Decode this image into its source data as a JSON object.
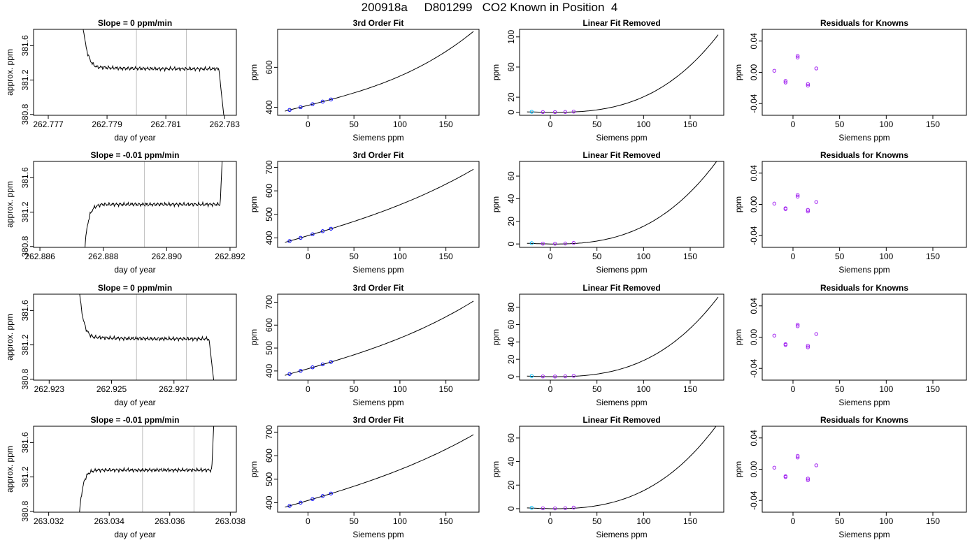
{
  "figure_title": "200918a     D801299   CO2 Known in Position  4",
  "colors": {
    "line": "#000000",
    "grid": "#bebebe",
    "point_blue": "#0000ff",
    "point_purple": "#a020f0",
    "point_cyan": "#00bfff",
    "marker_red": "#ff0000"
  },
  "chart_data": [
    {
      "id": "r1-trace",
      "type": "line",
      "title": "Slope =  0  ppm/min",
      "xlabel": "day of year",
      "ylabel": "approx. ppm",
      "xlim": [
        262.7765,
        262.7834
      ],
      "ylim": [
        380.79,
        381.79
      ],
      "xticks": [
        262.777,
        262.779,
        262.781,
        262.783
      ],
      "yticks": [
        380.8,
        381.2,
        381.6
      ],
      "vlines": [
        262.78,
        262.7817
      ],
      "x0": 262.7781,
      "x1": 262.783,
      "hi": 382.2,
      "lo": 380.7,
      "plateau": 381.33,
      "direction": "down"
    },
    {
      "id": "r1-fit",
      "type": "line",
      "title": "3rd Order Fit",
      "xlabel": "Siemens ppm",
      "ylabel": "ppm",
      "xlim": [
        -33,
        186
      ],
      "ylim": [
        360,
        790
      ],
      "xticks": [
        0,
        50,
        100,
        150
      ],
      "yticks": [
        400,
        600
      ],
      "curve": {
        "x": [
          -25,
          180
        ],
        "c0": 409.6,
        "c1": 1.15,
        "c2": 0.0008,
        "c3": 2.35e-05
      },
      "points": {
        "x": [
          -20,
          -8,
          5,
          16,
          25
        ],
        "y": [
          386.7,
          400.4,
          415.7,
          428.7,
          439.3
        ],
        "color": "blue"
      }
    },
    {
      "id": "r1-lin",
      "type": "line",
      "title": "Linear Fit Removed",
      "xlabel": "Siemens ppm",
      "ylabel": "ppm",
      "xlim": [
        -33,
        186
      ],
      "ylim": [
        -4,
        110
      ],
      "xticks": [
        0,
        50,
        100,
        150
      ],
      "yticks": [
        0,
        20,
        60,
        100
      ],
      "curve": {
        "x": [
          -25,
          180
        ],
        "c0": 0,
        "c1": -0.01,
        "c2": 0.0008,
        "c3": 1.35e-05
      },
      "points": {
        "x": [
          -20,
          -8,
          5,
          16,
          25
        ],
        "y": [
          0.7,
          0.3,
          0.2,
          0.4,
          0.9
        ],
        "color": "purple",
        "first_color": "cyan"
      }
    },
    {
      "id": "r1-res",
      "type": "scatter",
      "title": "Residuals for Knowns",
      "xlabel": "Siemens ppm",
      "ylabel": "ppm",
      "xlim": [
        -33,
        186
      ],
      "ylim": [
        -0.055,
        0.055
      ],
      "xticks": [
        0,
        50,
        100,
        150
      ],
      "yticks": [
        -0.04,
        0.0,
        0.04
      ],
      "ytick_labels": [
        "-0.04",
        "0.00",
        "0.04"
      ],
      "points": {
        "x": [
          -20,
          -8,
          -8,
          5,
          5,
          16,
          16,
          25
        ],
        "y": [
          0.002,
          -0.011,
          -0.013,
          0.021,
          0.019,
          -0.015,
          -0.017,
          0.005
        ],
        "color": "purple"
      }
    },
    {
      "id": "r2-trace",
      "type": "line",
      "title": "Slope =  -0.01  ppm/min",
      "xlabel": "day of year",
      "ylabel": "approx. ppm",
      "xlim": [
        262.8858,
        262.8922
      ],
      "ylim": [
        380.79,
        381.79
      ],
      "xticks": [
        262.886,
        262.888,
        262.89,
        262.892
      ],
      "yticks": [
        380.8,
        381.2,
        381.6
      ],
      "vlines": [
        262.8893,
        262.891
      ],
      "x0": 262.8874,
      "x1": 262.8918,
      "hi": 382.2,
      "lo": 380.7,
      "plateau": 381.29,
      "direction": "up"
    },
    {
      "id": "r2-fit",
      "type": "line",
      "title": "3rd Order Fit",
      "xlabel": "Siemens ppm",
      "ylabel": "ppm",
      "xlim": [
        -33,
        186
      ],
      "ylim": [
        360,
        725
      ],
      "xticks": [
        0,
        50,
        100,
        150
      ],
      "yticks": [
        400,
        500,
        600,
        700
      ],
      "curve": {
        "x": [
          -25,
          180
        ],
        "c0": 409.6,
        "c1": 1.15,
        "c2": 0.0008,
        "c3": 8.4e-06
      },
      "points": {
        "x": [
          -20,
          -8,
          5,
          16,
          25
        ],
        "y": [
          386.7,
          400.4,
          415.7,
          428.7,
          439.3
        ],
        "color": "blue"
      }
    },
    {
      "id": "r2-lin",
      "type": "line",
      "title": "Linear Fit Removed",
      "xlabel": "Siemens ppm",
      "ylabel": "ppm",
      "xlim": [
        -33,
        186
      ],
      "ylim": [
        -3,
        73
      ],
      "xticks": [
        0,
        50,
        100,
        150
      ],
      "yticks": [
        0,
        20,
        40,
        60
      ],
      "curve": {
        "x": [
          -25,
          180
        ],
        "c0": 0,
        "c1": -0.01,
        "c2": 0.0008,
        "c3": 8.7e-06
      },
      "points": {
        "x": [
          -20,
          -8,
          5,
          16,
          25
        ],
        "y": [
          0.7,
          0.3,
          0.2,
          0.4,
          0.9
        ],
        "color": "purple",
        "first_color": "cyan"
      }
    },
    {
      "id": "r2-res",
      "type": "scatter",
      "title": "Residuals for Knowns",
      "xlabel": "Siemens ppm",
      "ylabel": "ppm",
      "xlim": [
        -33,
        186
      ],
      "ylim": [
        -0.055,
        0.055
      ],
      "xticks": [
        0,
        50,
        100,
        150
      ],
      "yticks": [
        -0.04,
        0.0,
        0.04
      ],
      "ytick_labels": [
        "-0.04",
        "0.00",
        "0.04"
      ],
      "points": {
        "x": [
          -20,
          -8,
          -8,
          5,
          5,
          16,
          16,
          25
        ],
        "y": [
          0.001,
          -0.005,
          -0.006,
          0.012,
          0.01,
          -0.007,
          -0.009,
          0.003
        ],
        "color": "purple"
      }
    },
    {
      "id": "r3-trace",
      "type": "line",
      "title": "Slope =  0  ppm/min",
      "xlabel": "day of year",
      "ylabel": "approx. ppm",
      "xlim": [
        262.9225,
        262.929
      ],
      "ylim": [
        380.79,
        381.79
      ],
      "xticks": [
        262.923,
        262.925,
        262.927
      ],
      "yticks": [
        380.8,
        381.2,
        381.6
      ],
      "vlines": [
        262.9258,
        262.9274
      ],
      "x0": 262.9239,
      "x1": 262.9283,
      "hi": 382.2,
      "lo": 380.7,
      "plateau": 381.27,
      "direction": "down"
    },
    {
      "id": "r3-fit",
      "type": "line",
      "title": "3rd Order Fit",
      "xlabel": "Siemens ppm",
      "ylabel": "ppm",
      "xlim": [
        -33,
        186
      ],
      "ylim": [
        360,
        735
      ],
      "xticks": [
        0,
        50,
        100,
        150
      ],
      "yticks": [
        400,
        500,
        600,
        700
      ],
      "curve": {
        "x": [
          -25,
          180
        ],
        "c0": 409.6,
        "c1": 1.15,
        "c2": 0.0008,
        "c3": 1.07e-05
      },
      "points": {
        "x": [
          -20,
          -8,
          5,
          16,
          25
        ],
        "y": [
          386.7,
          400.4,
          415.7,
          428.7,
          439.3
        ],
        "color": "blue"
      }
    },
    {
      "id": "r3-lin",
      "type": "line",
      "title": "Linear Fit Removed",
      "xlabel": "Siemens ppm",
      "ylabel": "ppm",
      "xlim": [
        -33,
        186
      ],
      "ylim": [
        -4,
        95
      ],
      "xticks": [
        0,
        50,
        100,
        150
      ],
      "yticks": [
        0,
        20,
        40,
        60,
        80
      ],
      "curve": {
        "x": [
          -25,
          180
        ],
        "c0": 0,
        "c1": -0.01,
        "c2": 0.0008,
        "c3": 1.16e-05
      },
      "points": {
        "x": [
          -20,
          -8,
          5,
          16,
          25
        ],
        "y": [
          0.7,
          0.3,
          0.2,
          0.4,
          0.9
        ],
        "color": "purple",
        "first_color": "cyan"
      }
    },
    {
      "id": "r3-res",
      "type": "scatter",
      "title": "Residuals for Knowns",
      "xlabel": "Siemens ppm",
      "ylabel": "ppm",
      "xlim": [
        -33,
        186
      ],
      "ylim": [
        -0.055,
        0.055
      ],
      "xticks": [
        0,
        50,
        100,
        150
      ],
      "yticks": [
        -0.04,
        0.0,
        0.04
      ],
      "ytick_labels": [
        "-0.04",
        "0.00",
        "0.04"
      ],
      "points": {
        "x": [
          -20,
          -8,
          -8,
          5,
          5,
          16,
          16,
          25
        ],
        "y": [
          0.002,
          -0.009,
          -0.01,
          0.016,
          0.014,
          -0.011,
          -0.013,
          0.004
        ],
        "color": "purple"
      }
    },
    {
      "id": "r4-trace",
      "type": "line",
      "title": "Slope =  -0.01  ppm/min",
      "xlabel": "day of year",
      "ylabel": "approx. ppm",
      "xlim": [
        263.0315,
        263.0382
      ],
      "ylim": [
        380.79,
        381.79
      ],
      "xticks": [
        263.032,
        263.034,
        263.036,
        263.038
      ],
      "yticks": [
        380.8,
        381.2,
        381.6
      ],
      "vlines": [
        263.0351,
        263.0368
      ],
      "x0": 263.033,
      "x1": 263.0375,
      "hi": 382.2,
      "lo": 380.7,
      "plateau": 381.28,
      "direction": "up"
    },
    {
      "id": "r4-fit",
      "type": "line",
      "title": "3rd Order Fit",
      "xlabel": "Siemens ppm",
      "ylabel": "ppm",
      "xlim": [
        -33,
        186
      ],
      "ylim": [
        360,
        725
      ],
      "xticks": [
        0,
        50,
        100,
        150
      ],
      "yticks": [
        400,
        500,
        600,
        700
      ],
      "curve": {
        "x": [
          -25,
          180
        ],
        "c0": 409.6,
        "c1": 1.15,
        "c2": 0.0008,
        "c3": 8e-06
      },
      "points": {
        "x": [
          -20,
          -8,
          5,
          16,
          25
        ],
        "y": [
          386.7,
          400.4,
          415.7,
          428.7,
          439.3
        ],
        "color": "blue"
      }
    },
    {
      "id": "r4-lin",
      "type": "line",
      "title": "Linear Fit Removed",
      "xlabel": "Siemens ppm",
      "ylabel": "ppm",
      "xlim": [
        -33,
        186
      ],
      "ylim": [
        -3,
        70
      ],
      "xticks": [
        0,
        50,
        100,
        150
      ],
      "yticks": [
        0,
        20,
        40,
        60
      ],
      "curve": {
        "x": [
          -25,
          180
        ],
        "c0": 0,
        "c1": -0.01,
        "c2": 0.0008,
        "c3": 8.3e-06
      },
      "points": {
        "x": [
          -20,
          -8,
          5,
          16,
          25
        ],
        "y": [
          0.7,
          0.3,
          0.2,
          0.4,
          0.9
        ],
        "color": "purple",
        "first_color": "cyan"
      }
    },
    {
      "id": "r4-res",
      "type": "scatter",
      "title": "Residuals for Knowns",
      "xlabel": "Siemens ppm",
      "ylabel": "ppm",
      "xlim": [
        -33,
        186
      ],
      "ylim": [
        -0.055,
        0.055
      ],
      "xticks": [
        0,
        50,
        100,
        150
      ],
      "yticks": [
        -0.04,
        0.0,
        0.04
      ],
      "ytick_labels": [
        "-0.04",
        "0.00",
        "0.04"
      ],
      "points": {
        "x": [
          -20,
          -8,
          -8,
          5,
          5,
          16,
          16,
          25
        ],
        "y": [
          0.002,
          -0.009,
          -0.01,
          0.017,
          0.015,
          -0.012,
          -0.014,
          0.005
        ],
        "color": "purple"
      }
    }
  ]
}
